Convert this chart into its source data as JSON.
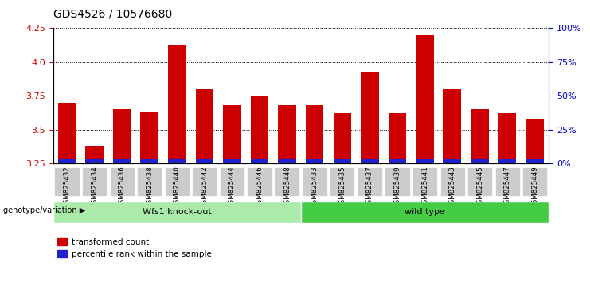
{
  "title": "GDS4526 / 10576680",
  "samples": [
    "GSM825432",
    "GSM825434",
    "GSM825436",
    "GSM825438",
    "GSM825440",
    "GSM825442",
    "GSM825444",
    "GSM825446",
    "GSM825448",
    "GSM825433",
    "GSM825435",
    "GSM825437",
    "GSM825439",
    "GSM825441",
    "GSM825443",
    "GSM825445",
    "GSM825447",
    "GSM825449"
  ],
  "red_values": [
    3.7,
    3.38,
    3.65,
    3.63,
    4.13,
    3.8,
    3.68,
    3.75,
    3.68,
    3.68,
    3.62,
    3.93,
    3.62,
    4.2,
    3.8,
    3.65,
    3.62,
    3.58
  ],
  "blue_values": [
    0.03,
    0.03,
    0.03,
    0.04,
    0.04,
    0.03,
    0.03,
    0.03,
    0.04,
    0.03,
    0.04,
    0.04,
    0.04,
    0.04,
    0.03,
    0.04,
    0.04,
    0.03
  ],
  "base": 3.25,
  "ylim": [
    3.25,
    4.25
  ],
  "yticks_left": [
    3.25,
    3.5,
    3.75,
    4.0,
    4.25
  ],
  "yticks_right": [
    0,
    25,
    50,
    75,
    100
  ],
  "ytick_labels_right": [
    "0%",
    "25%",
    "50%",
    "75%",
    "100%"
  ],
  "group1_label": "Wfs1 knock-out",
  "group2_label": "wild type",
  "group1_count": 9,
  "group2_count": 9,
  "genotype_label": "genotype/variation",
  "legend_red": "transformed count",
  "legend_blue": "percentile rank within the sample",
  "bar_color_red": "#cc0000",
  "bar_color_blue": "#2222cc",
  "group1_bg": "#aaeaaa",
  "group2_bg": "#44cc44",
  "plot_bg": "#ffffff",
  "tick_label_bg": "#cccccc",
  "title_color": "#000000",
  "left_tick_color": "#cc0000",
  "right_tick_color": "#0000cc"
}
